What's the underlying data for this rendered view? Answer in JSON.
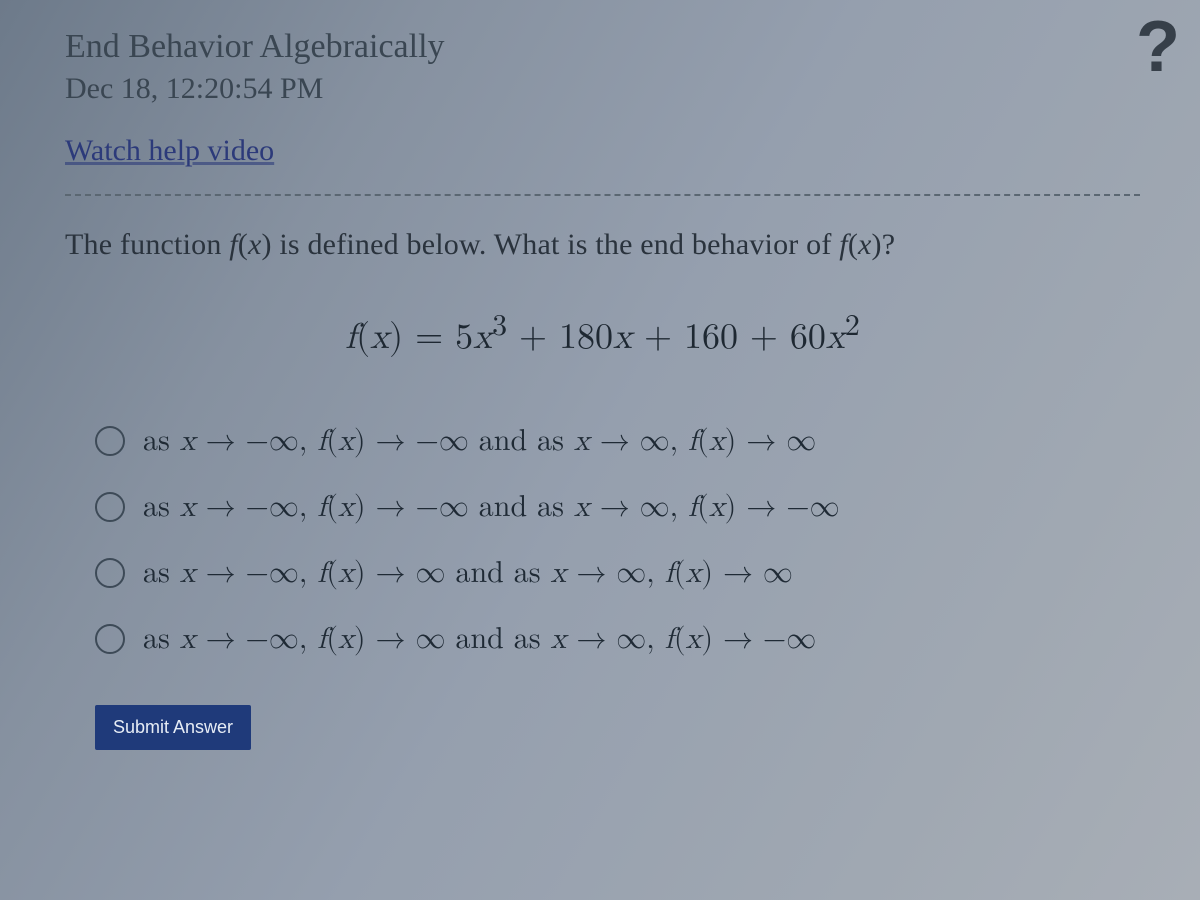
{
  "palette": {
    "text": "#2d3640",
    "link": "#2c3a7a",
    "button_bg": "#1f3a7a",
    "button_text": "#e6ecf5",
    "divider": "#5b6772",
    "help_icon": "#363f49"
  },
  "header": {
    "title": "End Behavior Algebraically",
    "date": "Dec 18, 12:20:54 PM",
    "help_link": "Watch help video",
    "help_icon_label": "?"
  },
  "question": {
    "prompt_html": "The function <span class='ital'>f</span>(<span class='ital'>x</span>) is defined below. What is the end behavior of <span class='ital'>f</span>(<span class='ital'>x</span>)?",
    "formula_html": "<span class='ital'>f</span>(<span class='ital'>x</span>) = 5<span class='ital'>x</span><sup>3</sup> + 180<span class='ital'>x</span> + 160 + 60<span class='ital'>x</span><sup>2</sup>"
  },
  "options": [
    {
      "html": "as <span class='ital'>x</span> → −∞, <span class='ital'>f</span>(<span class='ital'>x</span>) → −∞ and as <span class='ital'>x</span> → ∞, <span class='ital'>f</span>(<span class='ital'>x</span>) → ∞"
    },
    {
      "html": "as <span class='ital'>x</span> → −∞, <span class='ital'>f</span>(<span class='ital'>x</span>) → −∞ and as <span class='ital'>x</span> → ∞, <span class='ital'>f</span>(<span class='ital'>x</span>) → −∞"
    },
    {
      "html": "as <span class='ital'>x</span> → −∞, <span class='ital'>f</span>(<span class='ital'>x</span>) → ∞ and as <span class='ital'>x</span> → ∞, <span class='ital'>f</span>(<span class='ital'>x</span>) → ∞"
    },
    {
      "html": "as <span class='ital'>x</span> → −∞, <span class='ital'>f</span>(<span class='ital'>x</span>) → ∞ and as <span class='ital'>x</span> → ∞, <span class='ital'>f</span>(<span class='ital'>x</span>) → −∞"
    }
  ],
  "submit_label": "Submit Answer"
}
